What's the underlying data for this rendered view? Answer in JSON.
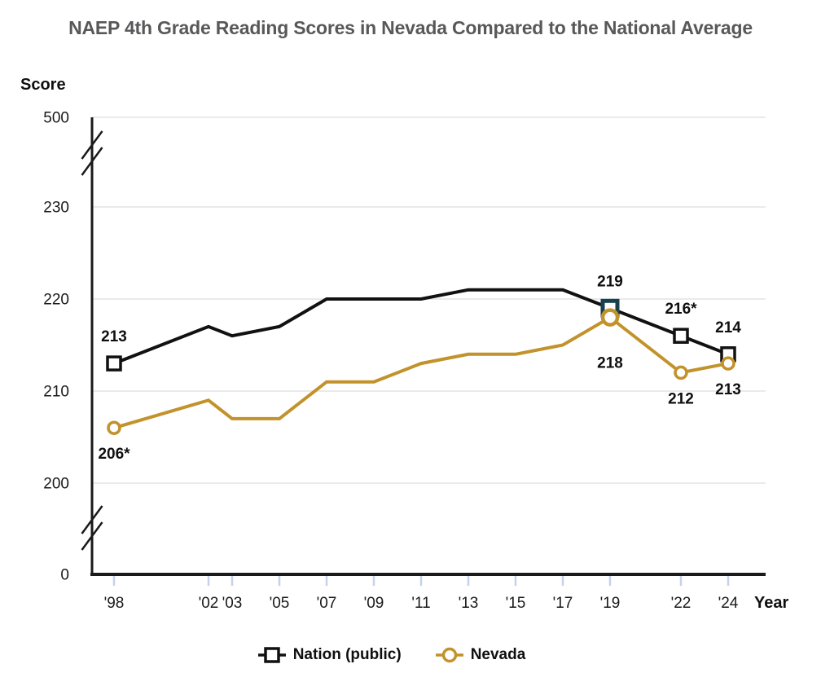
{
  "page": {
    "title": "NAEP 4th Grade Reading Scores in Nevada Compared to the National Average"
  },
  "chart_data": {
    "type": "line",
    "title": "NAEP 4th Grade Reading Scores in Nevada Compared to the National Average",
    "ylabel": "Score",
    "xlabel": "Year",
    "x_years": [
      1998,
      2002,
      2003,
      2005,
      2007,
      2009,
      2011,
      2013,
      2015,
      2017,
      2019,
      2022,
      2024
    ],
    "x_tick_labels": [
      "'98",
      "'02",
      "'03",
      "'05",
      "'07",
      "'09",
      "'11",
      "'13",
      "'15",
      "'17",
      "'19",
      "'22",
      "'24"
    ],
    "y_tick_labels": [
      "500",
      "230",
      "220",
      "210",
      "200",
      "0"
    ],
    "y_axis_break": true,
    "data_range": [
      200,
      230
    ],
    "grid": "horizontal",
    "series": [
      {
        "name": "Nation (public)",
        "color": "#111111",
        "marker": "square",
        "values": [
          213,
          217,
          216,
          217,
          220,
          220,
          220,
          221,
          221,
          221,
          219,
          216,
          214
        ],
        "labeled_points": [
          {
            "year": 1998,
            "label": "213",
            "pos": "above"
          },
          {
            "year": 2019,
            "label": "219",
            "pos": "above",
            "highlight": true
          },
          {
            "year": 2022,
            "label": "216*",
            "pos": "above"
          },
          {
            "year": 2024,
            "label": "214",
            "pos": "above"
          }
        ]
      },
      {
        "name": "Nevada",
        "color": "#C2922B",
        "marker": "circle",
        "values": [
          206,
          209,
          207,
          207,
          211,
          211,
          213,
          214,
          214,
          215,
          218,
          212,
          213
        ],
        "labeled_points": [
          {
            "year": 1998,
            "label": "206*",
            "pos": "below"
          },
          {
            "year": 2019,
            "label": "218",
            "pos": "below-far",
            "highlight": true
          },
          {
            "year": 2022,
            "label": "212",
            "pos": "below"
          },
          {
            "year": 2024,
            "label": "213",
            "pos": "below"
          }
        ]
      }
    ],
    "legend": [
      {
        "label": "Nation (public)",
        "marker": "square",
        "color": "#111111"
      },
      {
        "label": "Nevada",
        "marker": "circle",
        "color": "#C2922B"
      }
    ],
    "highlight_marker_color": "#17414F"
  },
  "colors": {
    "title_text": "#58585A",
    "axis": "#1A1A1A",
    "gridline": "#E4E4E4",
    "x_tick_mark": "#C5D1EE",
    "nation_line": "#111111",
    "nevada_line": "#C2922B",
    "highlight_square": "#17414F",
    "background": "#FFFFFF"
  }
}
